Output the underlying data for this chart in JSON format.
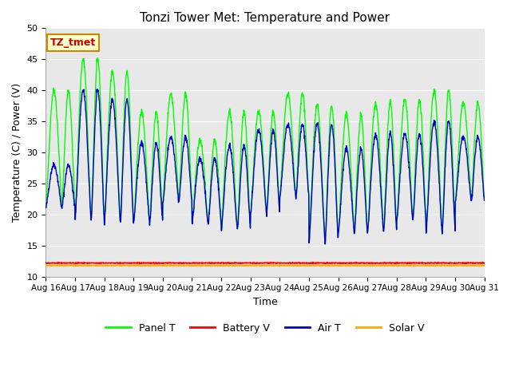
{
  "title": "Tonzi Tower Met: Temperature and Power",
  "xlabel": "Time",
  "ylabel": "Temperature (C) / Power (V)",
  "ylim": [
    10,
    50
  ],
  "yticks": [
    10,
    15,
    20,
    25,
    30,
    35,
    40,
    45,
    50
  ],
  "xtick_labels": [
    "Aug 16",
    "Aug 17",
    "Aug 18",
    "Aug 19",
    "Aug 20",
    "Aug 21",
    "Aug 22",
    "Aug 23",
    "Aug 24",
    "Aug 25",
    "Aug 26",
    "Aug 27",
    "Aug 28",
    "Aug 29",
    "Aug 30",
    "Aug 31"
  ],
  "annotation_text": "TZ_tmet",
  "annotation_color": "#cc0000",
  "annotation_bg": "#ffffcc",
  "annotation_border": "#cc8800",
  "colors": {
    "panel_t": "#00ff00",
    "battery_v": "#ff0000",
    "air_t": "#0000cc",
    "solar_v": "#ffaa00"
  },
  "legend_labels": [
    "Panel T",
    "Battery V",
    "Air T",
    "Solar V"
  ],
  "panel_peaks": [
    40,
    45,
    43,
    36.5,
    39.5,
    32,
    36.5,
    36.5,
    39.5,
    37.5,
    36,
    38,
    38.5,
    40,
    38
  ],
  "air_peaks": [
    28,
    40,
    38.5,
    31.5,
    32.5,
    29,
    31,
    33.5,
    34.5,
    34.5,
    30.5,
    33,
    33,
    35,
    32.5
  ],
  "shared_mins": [
    21,
    19,
    18.5,
    18.5,
    22,
    18.5,
    17.5,
    20,
    22.5,
    15.5,
    17,
    17,
    19,
    17,
    22
  ],
  "battery_level": 12.2,
  "solar_level": 11.8,
  "fig_facecolor": "#ffffff",
  "axes_facecolor": "#e8e8e8",
  "grid_color": "#ffffff",
  "spine_color": "#aaaaaa",
  "title_fontsize": 11,
  "label_fontsize": 9,
  "tick_fontsize": 8,
  "xtick_fontsize": 7.5
}
